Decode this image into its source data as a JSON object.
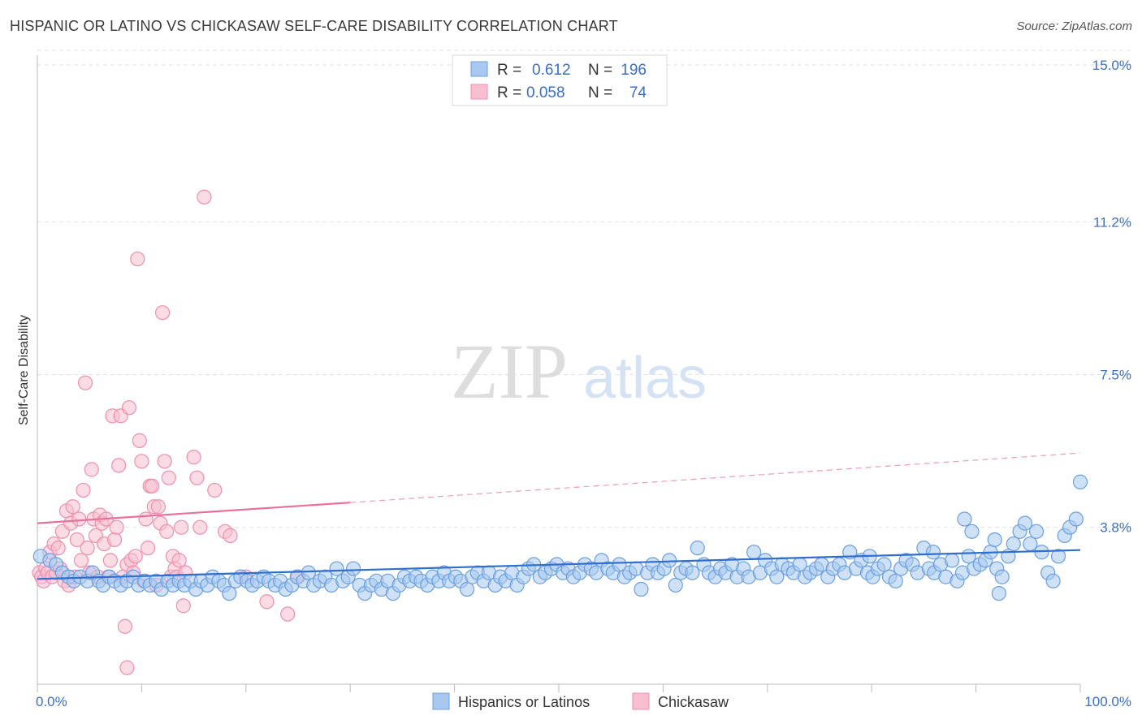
{
  "header": {
    "title": "HISPANIC OR LATINO VS CHICKASAW SELF-CARE DISABILITY CORRELATION CHART",
    "source": "Source: ZipAtlas.com"
  },
  "watermark": {
    "zip": "ZIP",
    "atlas": "atlas"
  },
  "stats": [
    {
      "r_label": "R =",
      "r_value": "0.612",
      "n_label": "N =",
      "n_value": "196",
      "color": "#a8c8f0",
      "stroke": "#6a9fe0"
    },
    {
      "r_label": "R =",
      "r_value": "0.058",
      "n_label": "N =",
      "n_value": "74",
      "color": "#f8bfd0",
      "stroke": "#ee8fac"
    }
  ],
  "chart_data": {
    "type": "scatter",
    "title": "HISPANIC OR LATINO VS CHICKASAW SELF-CARE DISABILITY CORRELATION CHART",
    "xlabel": "",
    "ylabel": "Self-Care Disability",
    "xlim": [
      0,
      100
    ],
    "ylim": [
      0,
      15
    ],
    "x_tick_labels": [
      "0.0%",
      "100.0%"
    ],
    "y_ticks": [
      3.8,
      7.5,
      11.2,
      15.0
    ],
    "y_tick_labels": [
      "3.8%",
      "7.5%",
      "11.2%",
      "15.0%"
    ],
    "grid": "horizontal dashed",
    "legend_position": "bottom-center",
    "series": [
      {
        "name": "Hispanics or Latinos",
        "color": "#a8c8f0",
        "stroke": "#6a9fe0",
        "trend": {
          "x": [
            0,
            100
          ],
          "y": [
            2.55,
            3.25
          ],
          "color": "#2f6fd0"
        },
        "points": [
          [
            0.3,
            3.1
          ],
          [
            1.2,
            3.0
          ],
          [
            1.8,
            2.9
          ],
          [
            2.4,
            2.7
          ],
          [
            3.0,
            2.6
          ],
          [
            3.5,
            2.5
          ],
          [
            4.1,
            2.6
          ],
          [
            4.8,
            2.5
          ],
          [
            5.3,
            2.7
          ],
          [
            5.9,
            2.5
          ],
          [
            6.3,
            2.4
          ],
          [
            6.9,
            2.6
          ],
          [
            7.4,
            2.5
          ],
          [
            8.0,
            2.4
          ],
          [
            8.6,
            2.5
          ],
          [
            9.2,
            2.6
          ],
          [
            9.7,
            2.4
          ],
          [
            10.3,
            2.5
          ],
          [
            10.8,
            2.4
          ],
          [
            11.4,
            2.5
          ],
          [
            11.9,
            2.3
          ],
          [
            12.5,
            2.5
          ],
          [
            13.0,
            2.4
          ],
          [
            13.6,
            2.5
          ],
          [
            14.1,
            2.4
          ],
          [
            14.7,
            2.5
          ],
          [
            15.2,
            2.3
          ],
          [
            15.7,
            2.5
          ],
          [
            16.3,
            2.4
          ],
          [
            16.8,
            2.6
          ],
          [
            17.4,
            2.5
          ],
          [
            17.9,
            2.4
          ],
          [
            18.4,
            2.2
          ],
          [
            19.0,
            2.5
          ],
          [
            19.5,
            2.6
          ],
          [
            20.1,
            2.5
          ],
          [
            20.6,
            2.4
          ],
          [
            21.1,
            2.5
          ],
          [
            21.7,
            2.6
          ],
          [
            22.2,
            2.5
          ],
          [
            22.8,
            2.4
          ],
          [
            23.3,
            2.5
          ],
          [
            23.8,
            2.3
          ],
          [
            24.4,
            2.4
          ],
          [
            24.9,
            2.6
          ],
          [
            25.5,
            2.5
          ],
          [
            26.0,
            2.7
          ],
          [
            26.5,
            2.4
          ],
          [
            27.1,
            2.5
          ],
          [
            27.6,
            2.6
          ],
          [
            28.2,
            2.4
          ],
          [
            28.7,
            2.8
          ],
          [
            29.3,
            2.5
          ],
          [
            29.8,
            2.6
          ],
          [
            30.3,
            2.8
          ],
          [
            30.9,
            2.4
          ],
          [
            31.4,
            2.2
          ],
          [
            32.0,
            2.4
          ],
          [
            32.5,
            2.5
          ],
          [
            33.0,
            2.3
          ],
          [
            33.6,
            2.5
          ],
          [
            34.1,
            2.2
          ],
          [
            34.7,
            2.4
          ],
          [
            35.2,
            2.6
          ],
          [
            35.7,
            2.5
          ],
          [
            36.3,
            2.6
          ],
          [
            36.8,
            2.5
          ],
          [
            37.4,
            2.4
          ],
          [
            37.9,
            2.6
          ],
          [
            38.5,
            2.5
          ],
          [
            39.0,
            2.7
          ],
          [
            39.5,
            2.5
          ],
          [
            40.1,
            2.6
          ],
          [
            40.6,
            2.5
          ],
          [
            41.2,
            2.3
          ],
          [
            41.7,
            2.6
          ],
          [
            42.2,
            2.7
          ],
          [
            42.8,
            2.5
          ],
          [
            43.3,
            2.7
          ],
          [
            43.9,
            2.4
          ],
          [
            44.4,
            2.6
          ],
          [
            44.9,
            2.5
          ],
          [
            45.5,
            2.7
          ],
          [
            46.0,
            2.4
          ],
          [
            46.6,
            2.6
          ],
          [
            47.1,
            2.8
          ],
          [
            47.6,
            2.9
          ],
          [
            48.2,
            2.6
          ],
          [
            48.7,
            2.7
          ],
          [
            49.3,
            2.8
          ],
          [
            49.8,
            2.9
          ],
          [
            50.4,
            2.7
          ],
          [
            50.9,
            2.8
          ],
          [
            51.4,
            2.6
          ],
          [
            52.0,
            2.7
          ],
          [
            52.5,
            2.9
          ],
          [
            53.1,
            2.8
          ],
          [
            53.6,
            2.7
          ],
          [
            54.1,
            3.0
          ],
          [
            54.7,
            2.8
          ],
          [
            55.2,
            2.7
          ],
          [
            55.8,
            2.9
          ],
          [
            56.3,
            2.6
          ],
          [
            56.8,
            2.7
          ],
          [
            57.4,
            2.8
          ],
          [
            57.9,
            2.3
          ],
          [
            58.5,
            2.7
          ],
          [
            59.0,
            2.9
          ],
          [
            59.5,
            2.7
          ],
          [
            60.1,
            2.8
          ],
          [
            60.6,
            3.0
          ],
          [
            61.2,
            2.4
          ],
          [
            61.7,
            2.7
          ],
          [
            62.2,
            2.8
          ],
          [
            62.8,
            2.7
          ],
          [
            63.3,
            3.3
          ],
          [
            63.9,
            2.9
          ],
          [
            64.4,
            2.7
          ],
          [
            65.0,
            2.6
          ],
          [
            65.5,
            2.8
          ],
          [
            66.0,
            2.7
          ],
          [
            66.6,
            2.9
          ],
          [
            67.1,
            2.6
          ],
          [
            67.7,
            2.8
          ],
          [
            68.2,
            2.6
          ],
          [
            68.7,
            3.2
          ],
          [
            69.3,
            2.7
          ],
          [
            69.8,
            3.0
          ],
          [
            70.4,
            2.8
          ],
          [
            70.9,
            2.6
          ],
          [
            71.4,
            2.9
          ],
          [
            72.0,
            2.8
          ],
          [
            72.5,
            2.7
          ],
          [
            73.1,
            2.9
          ],
          [
            73.6,
            2.6
          ],
          [
            74.1,
            2.7
          ],
          [
            74.7,
            2.8
          ],
          [
            75.2,
            2.9
          ],
          [
            75.8,
            2.6
          ],
          [
            76.3,
            2.8
          ],
          [
            76.9,
            2.9
          ],
          [
            77.4,
            2.7
          ],
          [
            77.9,
            3.2
          ],
          [
            78.5,
            2.8
          ],
          [
            79.0,
            3.0
          ],
          [
            79.6,
            2.7
          ],
          [
            80.1,
            2.6
          ],
          [
            80.6,
            2.8
          ],
          [
            81.2,
            2.9
          ],
          [
            81.7,
            2.6
          ],
          [
            82.3,
            2.5
          ],
          [
            82.8,
            2.8
          ],
          [
            83.3,
            3.0
          ],
          [
            83.9,
            2.9
          ],
          [
            84.4,
            2.7
          ],
          [
            85.0,
            3.3
          ],
          [
            85.5,
            2.8
          ],
          [
            86.0,
            2.7
          ],
          [
            86.6,
            2.9
          ],
          [
            87.1,
            2.6
          ],
          [
            87.7,
            3.0
          ],
          [
            88.2,
            2.5
          ],
          [
            88.7,
            2.7
          ],
          [
            89.3,
            3.1
          ],
          [
            89.8,
            2.8
          ],
          [
            90.4,
            2.9
          ],
          [
            90.9,
            3.0
          ],
          [
            91.4,
            3.2
          ],
          [
            92.0,
            2.8
          ],
          [
            92.5,
            2.6
          ],
          [
            93.1,
            3.1
          ],
          [
            93.6,
            3.4
          ],
          [
            94.2,
            3.7
          ],
          [
            94.7,
            3.9
          ],
          [
            95.2,
            3.4
          ],
          [
            95.8,
            3.7
          ],
          [
            96.3,
            3.2
          ],
          [
            96.9,
            2.7
          ],
          [
            97.4,
            2.5
          ],
          [
            97.9,
            3.1
          ],
          [
            98.5,
            3.6
          ],
          [
            99.0,
            3.8
          ],
          [
            99.6,
            4.0
          ],
          [
            100.0,
            4.9
          ],
          [
            92.2,
            2.2
          ],
          [
            88.9,
            4.0
          ],
          [
            91.8,
            3.5
          ],
          [
            85.9,
            3.2
          ],
          [
            79.8,
            3.1
          ],
          [
            89.6,
            3.7
          ]
        ]
      },
      {
        "name": "Chickasaw",
        "color": "#f8bfd0",
        "stroke": "#ee8fac",
        "trend": {
          "x": [
            0,
            30
          ],
          "y": [
            3.9,
            4.4
          ],
          "dashed_to": [
            100,
            5.6
          ],
          "color": "#e8709a"
        },
        "points": [
          [
            0.2,
            2.7
          ],
          [
            0.4,
            2.6
          ],
          [
            0.6,
            2.5
          ],
          [
            0.8,
            2.8
          ],
          [
            1.0,
            2.7
          ],
          [
            1.2,
            3.2
          ],
          [
            1.4,
            2.6
          ],
          [
            1.6,
            3.4
          ],
          [
            1.8,
            2.7
          ],
          [
            2.0,
            3.3
          ],
          [
            2.2,
            2.8
          ],
          [
            2.4,
            3.7
          ],
          [
            2.6,
            2.5
          ],
          [
            2.8,
            4.2
          ],
          [
            3.0,
            2.4
          ],
          [
            3.2,
            3.9
          ],
          [
            3.4,
            4.3
          ],
          [
            3.6,
            2.6
          ],
          [
            3.8,
            3.5
          ],
          [
            4.0,
            4.0
          ],
          [
            4.2,
            3.0
          ],
          [
            4.4,
            4.7
          ],
          [
            4.6,
            7.3
          ],
          [
            4.8,
            3.3
          ],
          [
            5.0,
            2.7
          ],
          [
            5.2,
            5.2
          ],
          [
            5.4,
            4.0
          ],
          [
            5.6,
            3.6
          ],
          [
            5.8,
            2.6
          ],
          [
            6.0,
            4.1
          ],
          [
            6.2,
            3.9
          ],
          [
            6.4,
            3.4
          ],
          [
            6.6,
            4.0
          ],
          [
            6.8,
            2.6
          ],
          [
            7.0,
            3.0
          ],
          [
            7.2,
            6.5
          ],
          [
            7.4,
            3.5
          ],
          [
            7.6,
            3.8
          ],
          [
            7.8,
            5.3
          ],
          [
            8.0,
            6.5
          ],
          [
            8.2,
            2.6
          ],
          [
            8.4,
            1.4
          ],
          [
            8.6,
            2.9
          ],
          [
            8.8,
            6.7
          ],
          [
            9.0,
            3.0
          ],
          [
            9.2,
            2.7
          ],
          [
            9.4,
            3.1
          ],
          [
            9.6,
            10.3
          ],
          [
            9.8,
            5.9
          ],
          [
            10.0,
            5.4
          ],
          [
            10.2,
            2.5
          ],
          [
            10.4,
            4.0
          ],
          [
            10.6,
            3.3
          ],
          [
            10.8,
            4.8
          ],
          [
            11.0,
            4.8
          ],
          [
            11.2,
            4.3
          ],
          [
            11.4,
            2.4
          ],
          [
            11.6,
            4.3
          ],
          [
            11.8,
            3.9
          ],
          [
            12.0,
            9.0
          ],
          [
            12.2,
            5.4
          ],
          [
            12.4,
            3.7
          ],
          [
            12.6,
            5.0
          ],
          [
            12.8,
            2.6
          ],
          [
            13.0,
            3.1
          ],
          [
            13.2,
            2.8
          ],
          [
            13.4,
            2.6
          ],
          [
            13.6,
            3.0
          ],
          [
            13.8,
            3.8
          ],
          [
            14.0,
            1.9
          ],
          [
            14.2,
            2.7
          ],
          [
            15.0,
            5.5
          ],
          [
            15.3,
            5.0
          ],
          [
            15.6,
            3.8
          ],
          [
            16.0,
            11.8
          ],
          [
            17.0,
            4.7
          ],
          [
            18.0,
            3.7
          ],
          [
            18.5,
            3.6
          ],
          [
            20.0,
            2.6
          ],
          [
            22.0,
            2.0
          ],
          [
            24.0,
            1.7
          ],
          [
            25.0,
            2.6
          ],
          [
            8.6,
            0.4
          ]
        ]
      }
    ]
  },
  "legend": {
    "items": [
      {
        "label": "Hispanics or Latinos",
        "color": "#a8c8f0",
        "stroke": "#6a9fe0"
      },
      {
        "label": "Chickasaw",
        "color": "#f8bfd0",
        "stroke": "#ee8fac"
      }
    ]
  }
}
